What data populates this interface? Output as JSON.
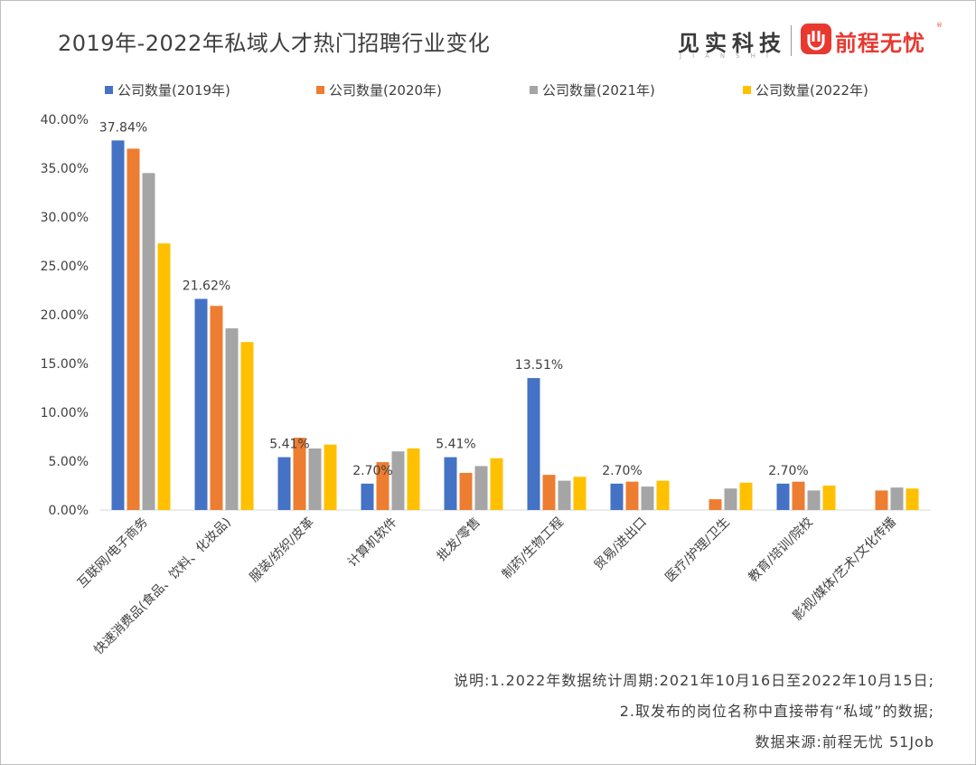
{
  "header": {
    "title": "2019年-2022年私域人才热门招聘行业变化",
    "brand_left": "见实科技",
    "brand_left_sub": "JIANSHI",
    "brand_right": "前程无忧",
    "brand_right_mark": "®"
  },
  "colors": {
    "series_2019": "#4472c4",
    "series_2020": "#ed7d31",
    "series_2021": "#a5a5a5",
    "series_2022": "#ffc000",
    "brand_red": "#e8382f"
  },
  "chart_data": {
    "type": "bar",
    "title": "2019年-2022年私域人才热门招聘行业变化",
    "categories": [
      "互联网/电子商务",
      "快速消费品(食品、饮料、化妆品)",
      "服装/纺织/皮革",
      "计算机软件",
      "批发/零售",
      "制药/生物工程",
      "贸易/进出口",
      "医疗/护理/卫生",
      "教育/培训/院校",
      "影视/媒体/艺术/文化传播"
    ],
    "series": [
      {
        "name": "公司数量(2019年)",
        "values": [
          37.84,
          21.62,
          5.41,
          2.7,
          5.41,
          13.51,
          2.7,
          null,
          2.7,
          null
        ]
      },
      {
        "name": "公司数量(2020年)",
        "values": [
          37.0,
          20.9,
          7.4,
          4.9,
          3.8,
          3.6,
          2.9,
          1.1,
          2.9,
          2.0
        ]
      },
      {
        "name": "公司数量(2021年)",
        "values": [
          34.5,
          18.6,
          6.3,
          6.0,
          4.5,
          3.0,
          2.4,
          2.2,
          2.0,
          2.3
        ]
      },
      {
        "name": "公司数量(2022年)",
        "values": [
          27.3,
          17.2,
          6.7,
          6.3,
          5.3,
          3.4,
          3.0,
          2.8,
          2.5,
          2.2
        ]
      }
    ],
    "data_labels": [
      "37.84%",
      "21.62%",
      "5.41%",
      "2.70%",
      "5.41%",
      "13.51%",
      "2.70%",
      "",
      "2.70%",
      ""
    ],
    "yticks": [
      "0.00%",
      "5.00%",
      "10.00%",
      "15.00%",
      "20.00%",
      "25.00%",
      "30.00%",
      "35.00%",
      "40.00%"
    ],
    "ylim": [
      0,
      40
    ],
    "legend_position": "top",
    "grid": false
  },
  "notes": {
    "line1": "说明:1.2022年数据统计周期:2021年10月16日至2022年10月15日;",
    "line2": "2.取发布的岗位名称中直接带有“私域”的数据;",
    "source": "数据来源:前程无忧 51Job"
  }
}
